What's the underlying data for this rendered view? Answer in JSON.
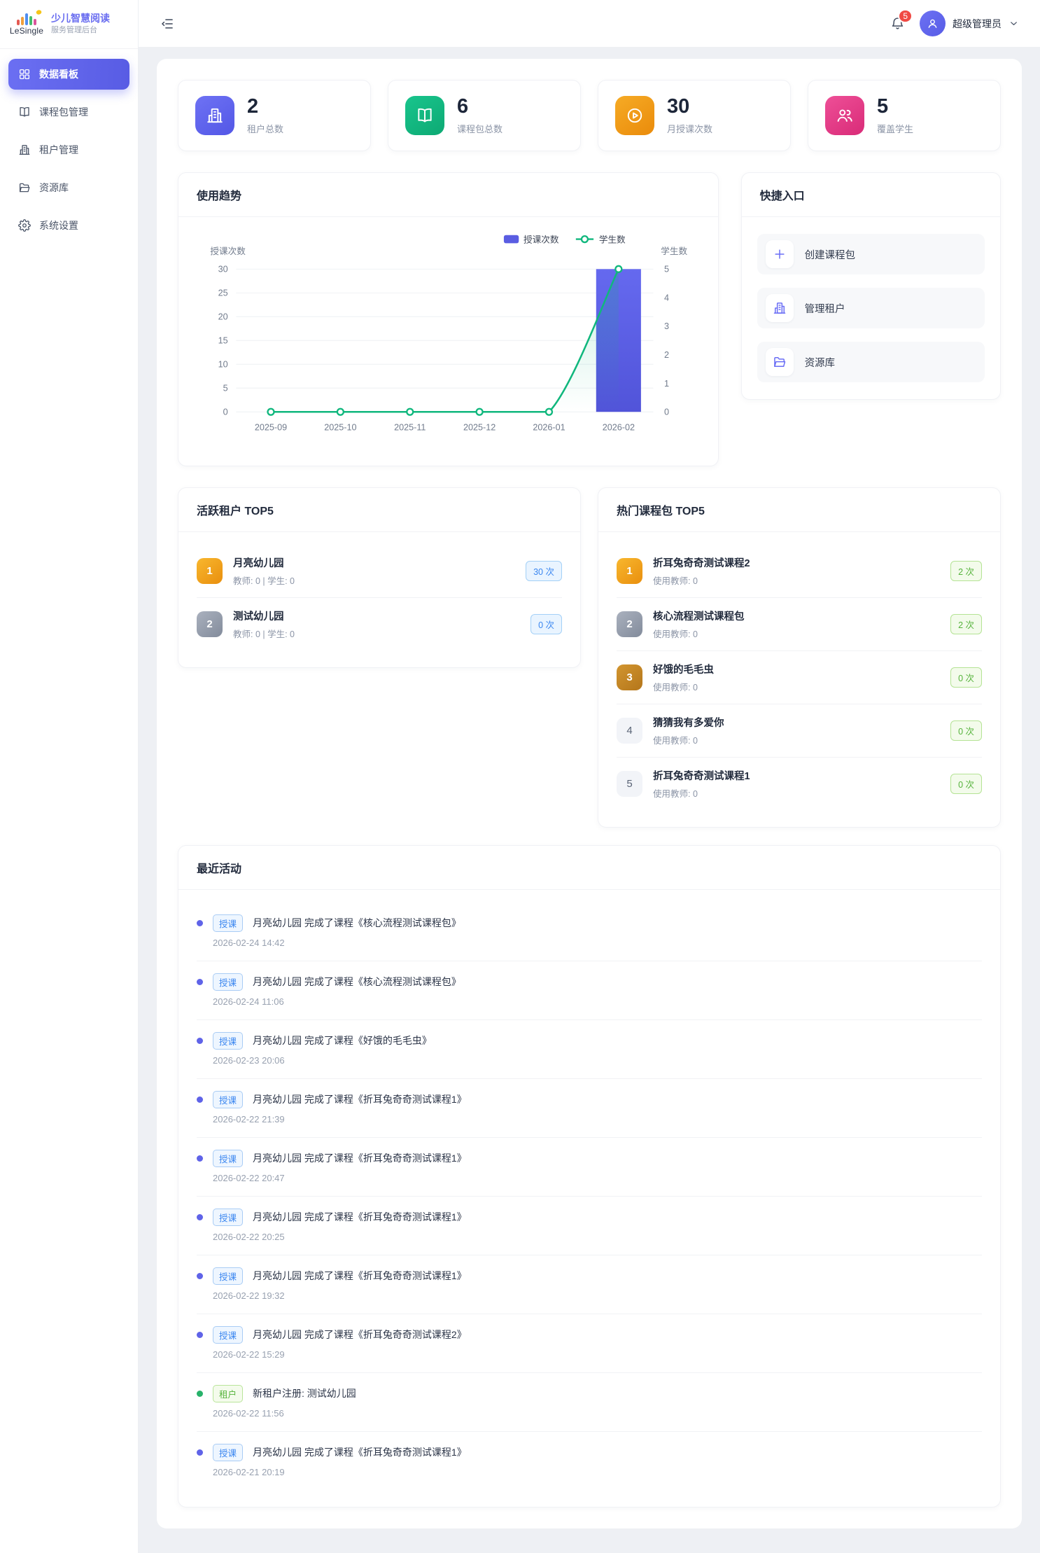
{
  "sidebar": {
    "brand": "LeSingle",
    "title": "少儿智慧阅读",
    "subtitle": "服务管理后台",
    "items": [
      {
        "label": "数据看板",
        "icon": "dashboard",
        "active": true
      },
      {
        "label": "课程包管理",
        "icon": "book",
        "active": false
      },
      {
        "label": "租户管理",
        "icon": "building",
        "active": false
      },
      {
        "label": "资源库",
        "icon": "folder",
        "active": false
      },
      {
        "label": "系统设置",
        "icon": "gear",
        "active": false
      }
    ]
  },
  "header": {
    "notification_count": "5",
    "user_name": "超级管理员"
  },
  "stats": [
    {
      "value": "2",
      "label": "租户总数",
      "icon": "building",
      "color_from": "#6e72f4",
      "color_to": "#5357e6"
    },
    {
      "value": "6",
      "label": "课程包总数",
      "icon": "book",
      "color_from": "#19c58d",
      "color_to": "#0da973"
    },
    {
      "value": "30",
      "label": "月授课次数",
      "icon": "play",
      "color_from": "#f6ab25",
      "color_to": "#ea8b0b"
    },
    {
      "value": "5",
      "label": "覆盖学生",
      "icon": "users",
      "color_from": "#ee4f97",
      "color_to": "#d92b78"
    }
  ],
  "trend": {
    "title": "使用趋势"
  },
  "chart_data": {
    "type": "bar",
    "title": "使用趋势",
    "categories": [
      "2025-09",
      "2025-10",
      "2025-11",
      "2025-12",
      "2026-01",
      "2026-02"
    ],
    "series": [
      {
        "name": "授课次数",
        "type": "bar",
        "axis": "left",
        "values": [
          0,
          0,
          0,
          0,
          0,
          30
        ],
        "color": "#5a5de2"
      },
      {
        "name": "学生数",
        "type": "line",
        "axis": "right",
        "values": [
          0,
          0,
          0,
          0,
          0,
          5
        ],
        "color": "#10b77d"
      }
    ],
    "left_axis": {
      "name": "授课次数",
      "min": 0,
      "max": 30,
      "ticks": [
        0,
        5,
        10,
        15,
        20,
        25,
        30
      ]
    },
    "right_axis": {
      "name": "学生数",
      "min": 0,
      "max": 5,
      "ticks": [
        0,
        1,
        2,
        3,
        4,
        5
      ]
    },
    "legend_position": "top-right",
    "grid": true
  },
  "quick": {
    "title": "快捷入口",
    "items": [
      {
        "label": "创建课程包",
        "icon": "plus"
      },
      {
        "label": "管理租户",
        "icon": "building"
      },
      {
        "label": "资源库",
        "icon": "folder"
      }
    ]
  },
  "active_tenants": {
    "title": "活跃租户 TOP5",
    "badge_style": "blue",
    "items": [
      {
        "rank": "1",
        "rank_style": "gold",
        "name": "月亮幼儿园",
        "meta": "教师: 0 | 学生: 0",
        "badge": "30 次"
      },
      {
        "rank": "2",
        "rank_style": "silver",
        "name": "测试幼儿园",
        "meta": "教师: 0 | 学生: 0",
        "badge": "0 次"
      }
    ]
  },
  "hot_packages": {
    "title": "热门课程包 TOP5",
    "badge_style": "green",
    "items": [
      {
        "rank": "1",
        "rank_style": "gold",
        "name": "折耳兔奇奇测试课程2",
        "meta": "使用教师: 0",
        "badge": "2 次"
      },
      {
        "rank": "2",
        "rank_style": "silver",
        "name": "核心流程测试课程包",
        "meta": "使用教师: 0",
        "badge": "2 次"
      },
      {
        "rank": "3",
        "rank_style": "bronze",
        "name": "好饿的毛毛虫",
        "meta": "使用教师: 0",
        "badge": "0 次"
      },
      {
        "rank": "4",
        "rank_style": "plain",
        "name": "猜猜我有多爱你",
        "meta": "使用教师: 0",
        "badge": "0 次"
      },
      {
        "rank": "5",
        "rank_style": "plain",
        "name": "折耳兔奇奇测试课程1",
        "meta": "使用教师: 0",
        "badge": "0 次"
      }
    ]
  },
  "activities": {
    "title": "最近活动",
    "items": [
      {
        "tag": "授课",
        "type": "blue",
        "text": "月亮幼儿园 完成了课程《核心流程测试课程包》",
        "time": "2026-02-24 14:42"
      },
      {
        "tag": "授课",
        "type": "blue",
        "text": "月亮幼儿园 完成了课程《核心流程测试课程包》",
        "time": "2026-02-24 11:06"
      },
      {
        "tag": "授课",
        "type": "blue",
        "text": "月亮幼儿园 完成了课程《好饿的毛毛虫》",
        "time": "2026-02-23 20:06"
      },
      {
        "tag": "授课",
        "type": "blue",
        "text": "月亮幼儿园 完成了课程《折耳兔奇奇测试课程1》",
        "time": "2026-02-22 21:39"
      },
      {
        "tag": "授课",
        "type": "blue",
        "text": "月亮幼儿园 完成了课程《折耳兔奇奇测试课程1》",
        "time": "2026-02-22 20:47"
      },
      {
        "tag": "授课",
        "type": "blue",
        "text": "月亮幼儿园 完成了课程《折耳兔奇奇测试课程1》",
        "time": "2026-02-22 20:25"
      },
      {
        "tag": "授课",
        "type": "blue",
        "text": "月亮幼儿园 完成了课程《折耳兔奇奇测试课程1》",
        "time": "2026-02-22 19:32"
      },
      {
        "tag": "授课",
        "type": "blue",
        "text": "月亮幼儿园 完成了课程《折耳兔奇奇测试课程2》",
        "time": "2026-02-22 15:29"
      },
      {
        "tag": "租户",
        "type": "green",
        "text": "新租户注册: 测试幼儿园",
        "time": "2026-02-22 11:56"
      },
      {
        "tag": "授课",
        "type": "blue",
        "text": "月亮幼儿园 完成了课程《折耳兔奇奇测试课程1》",
        "time": "2026-02-21 20:19"
      }
    ]
  },
  "colors": {
    "accent": "#6266ee",
    "bar": "#5a5de2",
    "line": "#10b77d",
    "gold": "#f0a21d",
    "silver": "#99a1b0",
    "bronze": "#c08423"
  }
}
